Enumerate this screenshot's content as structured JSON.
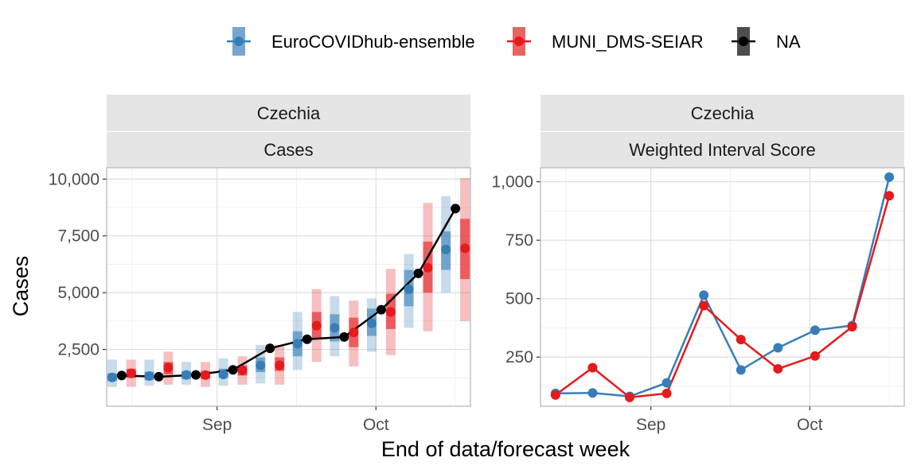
{
  "colors": {
    "ensemble": "#377EB8",
    "seiar": "#E41A1C",
    "observed": "#000000",
    "strip_bg": "#E5E5E5",
    "grid_major": "#DEDEDE",
    "grid_minor": "#F0F0F0",
    "panel_border": "#B3B3B3"
  },
  "legend": {
    "items": [
      {
        "key": "ensemble",
        "label": "EuroCOVIDhub-ensemble"
      },
      {
        "key": "seiar",
        "label": "MUNI_DMS-SEIAR"
      },
      {
        "key": "observed",
        "label": "NA"
      }
    ]
  },
  "axes": {
    "x_title": "End of data/forecast week",
    "y_title": "Cases"
  },
  "chart_data": [
    {
      "type": "line",
      "strip_top": "Czechia",
      "strip_bottom": "Cases",
      "x_ticks": [
        "Sep",
        "Oct"
      ],
      "y_ticks": [
        "2,500",
        "5,000",
        "7,500",
        "10,000"
      ],
      "ylim": [
        0,
        10500
      ],
      "x": [
        "2021-08-14",
        "2021-08-21",
        "2021-08-28",
        "2021-09-04",
        "2021-09-11",
        "2021-09-18",
        "2021-09-25",
        "2021-10-02",
        "2021-10-09",
        "2021-10-16"
      ],
      "observed": [
        1350,
        1300,
        1380,
        1600,
        2550,
        2950,
        3050,
        4250,
        5850,
        8700
      ],
      "ensemble": {
        "median": [
          1270,
          1330,
          1380,
          1400,
          1800,
          2750,
          3450,
          3650,
          5150,
          6900
        ],
        "q25": [
          1100,
          1150,
          1200,
          1250,
          1500,
          2200,
          2850,
          3100,
          4400,
          6000
        ],
        "q75": [
          1450,
          1520,
          1550,
          1650,
          2150,
          3300,
          4050,
          4300,
          6000,
          7700
        ],
        "q05": [
          850,
          900,
          950,
          900,
          1000,
          1600,
          2200,
          2400,
          3450,
          5000
        ],
        "q95": [
          2050,
          2050,
          1950,
          2100,
          2700,
          4150,
          4850,
          4750,
          6700,
          9250
        ]
      },
      "seiar": {
        "median": [
          1450,
          1700,
          1370,
          1580,
          1800,
          3550,
          3250,
          4150,
          6100,
          6950
        ],
        "q25": [
          1250,
          1400,
          1200,
          1350,
          1550,
          3000,
          2600,
          3400,
          5000,
          5600
        ],
        "q75": [
          1650,
          1950,
          1550,
          1800,
          2150,
          4150,
          3900,
          4950,
          7250,
          8250
        ],
        "q05": [
          850,
          950,
          850,
          950,
          950,
          1950,
          1750,
          2250,
          3300,
          3750
        ],
        "q95": [
          2050,
          2400,
          1950,
          2200,
          2700,
          5150,
          4650,
          6050,
          8950,
          10050
        ]
      }
    },
    {
      "type": "line",
      "strip_top": "Czechia",
      "strip_bottom": "Weighted Interval Score",
      "x_ticks": [
        "Sep",
        "Oct"
      ],
      "y_ticks": [
        "250",
        "500",
        "750",
        "1,000"
      ],
      "ylim": [
        40,
        1060
      ],
      "x": [
        "2021-08-14",
        "2021-08-21",
        "2021-08-28",
        "2021-09-04",
        "2021-09-11",
        "2021-09-18",
        "2021-09-25",
        "2021-10-02",
        "2021-10-09",
        "2021-10-16"
      ],
      "series": [
        {
          "key": "ensemble",
          "values": [
            95,
            97,
            82,
            140,
            515,
            195,
            290,
            365,
            385,
            1020
          ]
        },
        {
          "key": "seiar",
          "values": [
            88,
            205,
            78,
            95,
            470,
            325,
            200,
            255,
            380,
            940
          ]
        }
      ]
    }
  ]
}
